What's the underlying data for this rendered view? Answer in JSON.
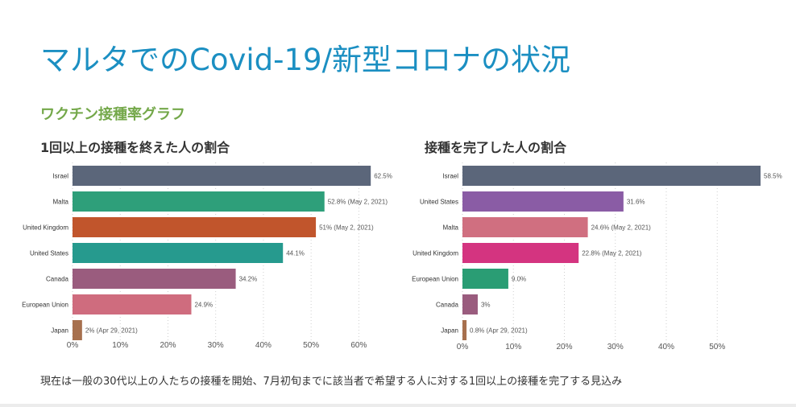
{
  "title": "マルタでのCovid-19/新型コロナの状況",
  "subtitle": "ワクチン接種率グラフ",
  "footnote": "現在は一般の30代以上の人たちの接種を開始、7月初旬までに該当者で希望する人に対する1回以上の接種を完了する見込み",
  "chart_data": [
    {
      "type": "bar",
      "orientation": "horizontal",
      "title": "1回以上の接種を終えた人の割合",
      "categories": [
        "Israel",
        "Malta",
        "United Kingdom",
        "United States",
        "Canada",
        "European Union",
        "Japan"
      ],
      "values": [
        62.5,
        52.8,
        51,
        44.1,
        34.2,
        24.9,
        2
      ],
      "data_labels": [
        "62.5%",
        "52.8% (May 2, 2021)",
        "51% (May 2, 2021)",
        "44.1%",
        "34.2%",
        "24.9%",
        "2% (Apr 29, 2021)"
      ],
      "colors": [
        "#5b667a",
        "#2e9f7a",
        "#c1552c",
        "#269a8e",
        "#9a5c7e",
        "#cf6c7e",
        "#a7704e"
      ],
      "xlim": [
        0,
        65
      ],
      "xticks": [
        0,
        10,
        20,
        30,
        40,
        50,
        60
      ],
      "xtick_labels": [
        "0%",
        "10%",
        "20%",
        "30%",
        "40%",
        "50%",
        "60%"
      ],
      "grid": "vertical-dotted",
      "legend": "none"
    },
    {
      "type": "bar",
      "orientation": "horizontal",
      "title": "接種を完了した人の割合",
      "categories": [
        "Israel",
        "United States",
        "Malta",
        "United Kingdom",
        "European Union",
        "Canada",
        "Japan"
      ],
      "values": [
        58.5,
        31.6,
        24.6,
        22.8,
        9,
        3,
        0.8
      ],
      "data_labels": [
        "58.5%",
        "31.6%",
        "24.6% (May 2, 2021)",
        "22.8% (May 2, 2021)",
        "9.0%",
        "3%",
        "0.8% (Apr 29, 2021)"
      ],
      "colors": [
        "#5b667a",
        "#8a5ca5",
        "#d06f80",
        "#d43480",
        "#2a9d74",
        "#9a5c7e",
        "#a7704e"
      ],
      "xlim": [
        0,
        58.5
      ],
      "xticks": [
        0,
        10,
        20,
        30,
        40,
        50
      ],
      "xtick_labels": [
        "0%",
        "10%",
        "20%",
        "30%",
        "40%",
        "50%"
      ],
      "grid": "vertical-dotted",
      "legend": "none"
    }
  ]
}
